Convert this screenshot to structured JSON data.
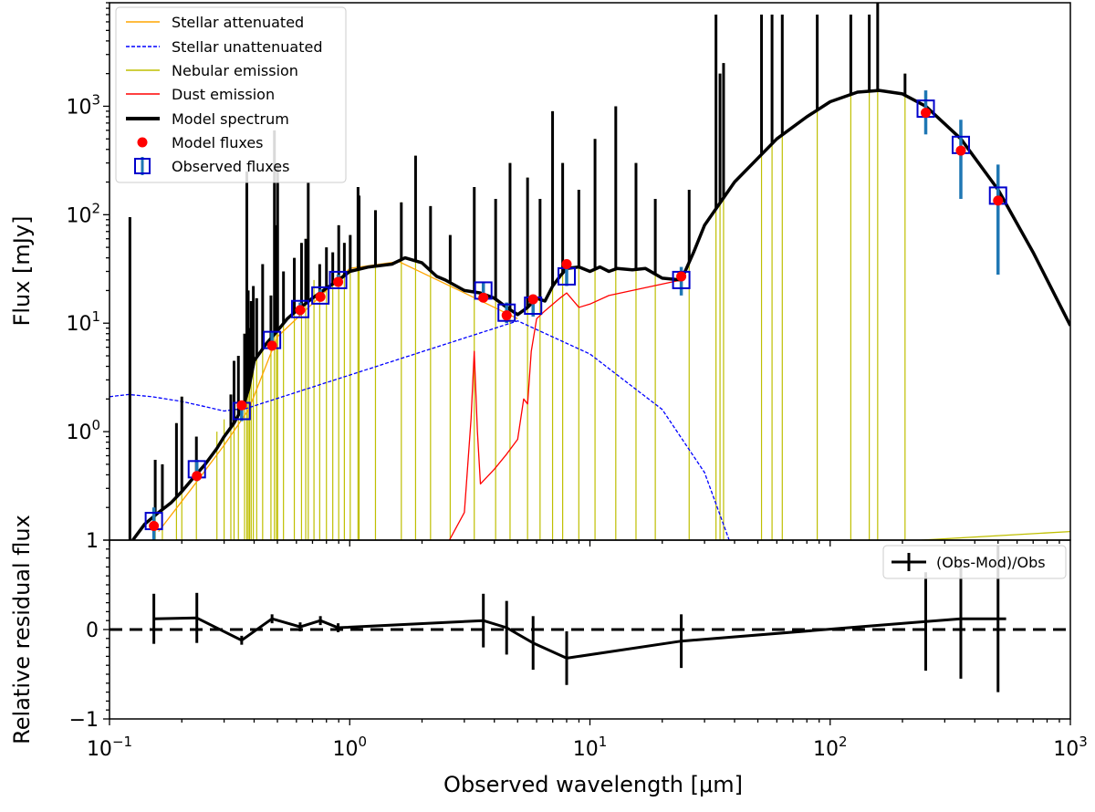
{
  "chart_data": [
    {
      "panel": "top",
      "type": "line",
      "ylabel": "Flux [mJy]",
      "xscale": "log",
      "yscale": "log",
      "xlim": [
        0.1,
        1000
      ],
      "ylim": [
        0.1,
        9000
      ],
      "ytick_labels": [
        {
          "value": 1,
          "base": "10",
          "exp": "0"
        },
        {
          "value": 10,
          "base": "10",
          "exp": "1"
        },
        {
          "value": 100,
          "base": "10",
          "exp": "2"
        },
        {
          "value": 1000,
          "base": "10",
          "exp": "3"
        }
      ],
      "legend": {
        "position": "upper-left",
        "entries": [
          {
            "label": "Stellar attenuated",
            "color": "#ffa500",
            "style": "line"
          },
          {
            "label": "Stellar unattenuated",
            "color": "#0000ff",
            "style": "dashed"
          },
          {
            "label": "Nebular emission",
            "color": "#bfbf00",
            "style": "line"
          },
          {
            "label": "Dust emission",
            "color": "#ff0000",
            "style": "line"
          },
          {
            "label": "Model spectrum",
            "color": "#000000",
            "style": "thick-line"
          },
          {
            "label": "Model fluxes",
            "color": "#ff0000",
            "style": "dot"
          },
          {
            "label": "Observed fluxes",
            "color": "#0000cc",
            "style": "square-errorbar"
          }
        ]
      },
      "series": [
        {
          "name": "Model spectrum",
          "color": "#000000",
          "x": [
            0.125,
            0.14,
            0.16,
            0.18,
            0.2,
            0.22,
            0.25,
            0.28,
            0.3,
            0.33,
            0.36,
            0.38,
            0.4,
            0.45,
            0.5,
            0.55,
            0.6,
            0.7,
            0.8,
            0.9,
            1.0,
            1.2,
            1.5,
            1.7,
            2.0,
            2.3,
            2.5,
            3.0,
            3.5,
            4.0,
            4.5,
            5.0,
            5.5,
            6.0,
            6.5,
            7.0,
            7.5,
            8.0,
            9.0,
            10.0,
            11.0,
            12.0,
            13.0,
            15.0,
            17.0,
            20.0,
            24.0,
            27.0,
            30.0,
            40.0,
            60.0,
            80.0,
            100.0,
            130.0,
            160.0,
            200.0,
            250.0,
            350.0,
            500.0,
            700.0,
            1000.0
          ],
          "y": [
            0.1,
            0.14,
            0.18,
            0.22,
            0.28,
            0.36,
            0.5,
            0.7,
            0.9,
            1.2,
            1.7,
            2.5,
            4.5,
            6.5,
            8.5,
            11,
            13,
            17,
            21,
            25,
            30,
            33,
            35,
            40,
            36,
            27,
            25,
            20,
            19,
            17,
            14,
            12,
            14,
            17,
            16,
            22,
            27,
            32,
            33,
            30,
            33,
            30,
            32,
            31,
            32,
            26,
            25,
            45,
            80,
            200,
            500,
            800,
            1100,
            1350,
            1400,
            1300,
            1000,
            500,
            170,
            45,
            9.5
          ]
        },
        {
          "name": "Stellar unattenuated",
          "color": "#0000ff",
          "x": [
            0.1,
            0.12,
            0.15,
            0.2,
            0.25,
            0.3,
            0.33,
            0.36,
            5.0,
            10.0,
            20.0,
            30.0,
            38.0
          ],
          "y": [
            2.1,
            2.2,
            2.1,
            1.9,
            1.7,
            1.55,
            1.6,
            1.6,
            10.5,
            5.2,
            1.6,
            0.42,
            0.1
          ]
        },
        {
          "name": "Dust emission",
          "color": "#ff0000",
          "x": [
            2.6,
            3.0,
            3.2,
            3.3,
            3.4,
            3.5,
            4.0,
            4.5,
            5.0,
            5.3,
            5.5,
            5.7,
            6.0,
            6.5,
            7.5,
            8.0,
            9.0,
            10.0,
            12.0,
            24.0
          ],
          "y": [
            0.1,
            0.18,
            1.3,
            5.5,
            1.0,
            0.33,
            0.45,
            0.62,
            0.85,
            2.0,
            1.8,
            5.5,
            11,
            13,
            17,
            19,
            14,
            15,
            18,
            25
          ]
        },
        {
          "name": "Stellar attenuated",
          "color": "#ffa500",
          "x": [
            0.16,
            0.22,
            0.3,
            0.38,
            0.5,
            1.0,
            1.6,
            3.0,
            5.0
          ],
          "y": [
            0.12,
            0.3,
            0.75,
            1.6,
            7.5,
            32,
            37,
            19,
            11
          ]
        },
        {
          "name": "Nebular emission",
          "color": "#bfbf00",
          "x": [
            240,
            1000
          ],
          "y": [
            0.1,
            0.12
          ]
        }
      ],
      "observed_fluxes": {
        "x": [
          0.153,
          0.231,
          0.355,
          0.475,
          0.622,
          0.755,
          0.895,
          3.6,
          4.5,
          5.8,
          8.0,
          24.0,
          250.0,
          350.0,
          500.0
        ],
        "y": [
          0.15,
          0.45,
          1.55,
          7.0,
          13.5,
          18.0,
          25.0,
          20.0,
          12.5,
          14.5,
          27.0,
          25.0,
          950.0,
          440.0,
          150.0
        ],
        "err_low": [
          0.1,
          0.35,
          1.25,
          5.8,
          11.8,
          16.0,
          22.5,
          16.5,
          10.0,
          11.5,
          22.0,
          18.0,
          550.0,
          140.0,
          28.0
        ],
        "err_high": [
          0.2,
          0.55,
          1.9,
          8.5,
          15.5,
          20.5,
          28.0,
          24.0,
          15.5,
          18.0,
          34.0,
          33.0,
          1400.0,
          750.0,
          290.0
        ]
      },
      "model_fluxes": {
        "x": [
          0.153,
          0.231,
          0.355,
          0.475,
          0.622,
          0.755,
          0.895,
          3.6,
          4.5,
          5.8,
          8.0,
          24.0,
          250.0,
          350.0,
          500.0
        ],
        "y": [
          0.135,
          0.39,
          1.75,
          6.2,
          13.2,
          17.5,
          24.0,
          17.2,
          11.8,
          16.6,
          35.0,
          27.0,
          870.0,
          390.0,
          135.0
        ]
      },
      "nebular_lines": {
        "x": [
          0.1216,
          0.155,
          0.166,
          0.19,
          0.2,
          0.23,
          0.28,
          0.3,
          0.32,
          0.33,
          0.344,
          0.365,
          0.373,
          0.378,
          0.383,
          0.389,
          0.397,
          0.41,
          0.434,
          0.47,
          0.486,
          0.496,
          0.501,
          0.53,
          0.588,
          0.63,
          0.656,
          0.672,
          0.71,
          0.75,
          0.8,
          0.85,
          0.9,
          0.95,
          1.005,
          1.083,
          1.094,
          1.28,
          1.64,
          1.88,
          2.17,
          2.62,
          3.3,
          4.05,
          4.65,
          5.5,
          6.2,
          6.99,
          7.7,
          8.99,
          10.5,
          12.81,
          15.55,
          18.71,
          25.89,
          33.48,
          34.8,
          36.0,
          51.8,
          57.3,
          63.2,
          88.36,
          121.9,
          145.5,
          157.7,
          205.0
        ],
        "y": [
          95,
          0.55,
          0.5,
          1.2,
          2.1,
          0.9,
          1.0,
          1.3,
          2.2,
          4.5,
          5.0,
          8.0,
          250,
          20,
          9.0,
          16,
          22,
          17,
          35,
          18,
          600,
          80,
          300,
          30,
          40,
          55,
          60,
          200,
          25,
          35,
          50,
          45,
          80,
          55,
          65,
          180,
          150,
          110,
          130,
          350,
          120,
          65,
          180,
          140,
          300,
          220,
          140,
          900,
          300,
          170,
          500,
          1000,
          300,
          140,
          170,
          7000,
          2000,
          2500,
          7000,
          7000,
          7000,
          7000,
          7000,
          7000,
          9000,
          2000
        ]
      }
    },
    {
      "panel": "bottom",
      "type": "line",
      "xlabel": "Observed wavelength [μm]",
      "ylabel": "Relative residual flux",
      "xscale": "log",
      "xlim": [
        0.1,
        1000
      ],
      "ylim": [
        -1,
        1
      ],
      "xtick_labels": [
        {
          "value": 0.1,
          "base": "10",
          "exp": "−1"
        },
        {
          "value": 1,
          "base": "10",
          "exp": "0"
        },
        {
          "value": 10,
          "base": "10",
          "exp": "1"
        },
        {
          "value": 100,
          "base": "10",
          "exp": "2"
        },
        {
          "value": 1000,
          "base": "10",
          "exp": "3"
        }
      ],
      "ytick_labels": [
        {
          "value": -1,
          "label": "−1"
        },
        {
          "value": 0,
          "label": "0"
        },
        {
          "value": 1,
          "label": "1"
        }
      ],
      "reference_line": {
        "y": 0,
        "style": "dashed"
      },
      "legend": {
        "position": "top-right",
        "entries": [
          {
            "label": "(Obs-Mod)/Obs",
            "style": "errorbar"
          }
        ]
      },
      "series": [
        {
          "name": "(Obs-Mod)/Obs",
          "color": "#000000",
          "x": [
            0.153,
            0.231,
            0.355,
            0.475,
            0.622,
            0.755,
            0.895,
            3.6,
            4.5,
            5.8,
            8.0,
            24.0,
            250.0,
            350.0,
            500.0,
            540.0
          ],
          "y": [
            0.12,
            0.13,
            -0.12,
            0.12,
            0.03,
            0.1,
            0.02,
            0.1,
            0.02,
            -0.15,
            -0.32,
            -0.13,
            0.09,
            0.12,
            0.12,
            0.12
          ],
          "err": [
            0.28,
            0.28,
            0.05,
            0.05,
            0.05,
            0.05,
            0.05,
            0.3,
            0.3,
            0.3,
            0.3,
            0.3,
            0.55,
            0.67,
            0.82,
            0
          ]
        }
      ]
    }
  ]
}
